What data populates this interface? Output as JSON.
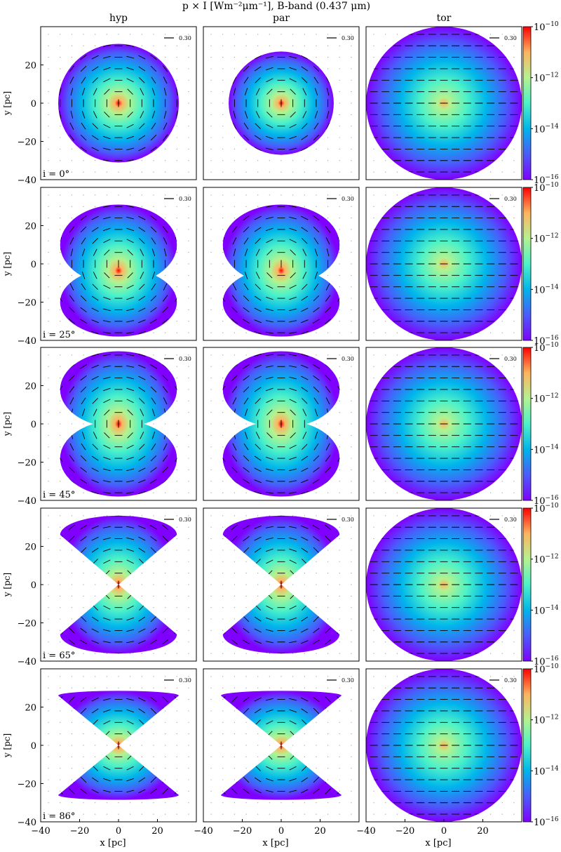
{
  "title": "p × I [Wm⁻²μm⁻¹], B-band (0.437 μm)",
  "columns": [
    "hyp",
    "par",
    "tor"
  ],
  "rows": [
    "i = 0°",
    "i = 25°",
    "i = 45°",
    "i = 65°",
    "i = 86°"
  ],
  "colors": {
    "cmap": [
      "#8000ff",
      "#4a5cfb",
      "#00b5eb",
      "#4df2c8",
      "#b4f28f",
      "#ffb360",
      "#ff0000"
    ]
  },
  "chart_data": {
    "type": "heatmap",
    "title": "p × I [Wm⁻²μm⁻¹], B-band (0.437 μm)",
    "xlabel": "x [pc]",
    "ylabel": "y [pc]",
    "xlim": [
      -40,
      40
    ],
    "ylim": [
      -40,
      40
    ],
    "xticks": [
      -40,
      -20,
      0,
      20
    ],
    "xtick_labels": [
      "−40",
      "−20",
      "0",
      "20"
    ],
    "yticks": [
      -40,
      -20,
      0,
      20
    ],
    "ytick_labels": [
      "−40",
      "−20",
      "0",
      "20"
    ],
    "colorbar": {
      "scale": "log",
      "range": [
        1e-16,
        1e-10
      ],
      "ticks": [
        -16,
        -14,
        -12,
        -10
      ],
      "tick_labels": [
        {
          "base": "10",
          "exp": "−16"
        },
        {
          "base": "10",
          "exp": "−14"
        },
        {
          "base": "10",
          "exp": "−12"
        },
        {
          "base": "10",
          "exp": "−10"
        }
      ]
    },
    "scale_vector": {
      "label": "0.30"
    },
    "panels": [
      {
        "row": "i = 0°",
        "column": "hyp",
        "shape": "disk",
        "r": 31
      },
      {
        "row": "i = 0°",
        "column": "par",
        "shape": "disk",
        "r": 27
      },
      {
        "row": "i = 0°",
        "column": "tor",
        "shape": "disk",
        "r": 40
      },
      {
        "row": "i = 25°",
        "column": "hyp",
        "shape": "two-lobes"
      },
      {
        "row": "i = 25°",
        "column": "par",
        "shape": "two-lobes"
      },
      {
        "row": "i = 25°",
        "column": "tor",
        "shape": "disk",
        "r": 40
      },
      {
        "row": "i = 45°",
        "column": "hyp",
        "shape": "bicone-open"
      },
      {
        "row": "i = 45°",
        "column": "par",
        "shape": "bicone-open"
      },
      {
        "row": "i = 45°",
        "column": "tor",
        "shape": "disk",
        "r": 40
      },
      {
        "row": "i = 65°",
        "column": "hyp",
        "shape": "bicone"
      },
      {
        "row": "i = 65°",
        "column": "par",
        "shape": "bicone"
      },
      {
        "row": "i = 65°",
        "column": "tor",
        "shape": "disk",
        "r": 40
      },
      {
        "row": "i = 86°",
        "column": "hyp",
        "shape": "bicone-edge"
      },
      {
        "row": "i = 86°",
        "column": "par",
        "shape": "bicone-edge"
      },
      {
        "row": "i = 86°",
        "column": "tor",
        "shape": "disk",
        "r": 40
      }
    ]
  }
}
